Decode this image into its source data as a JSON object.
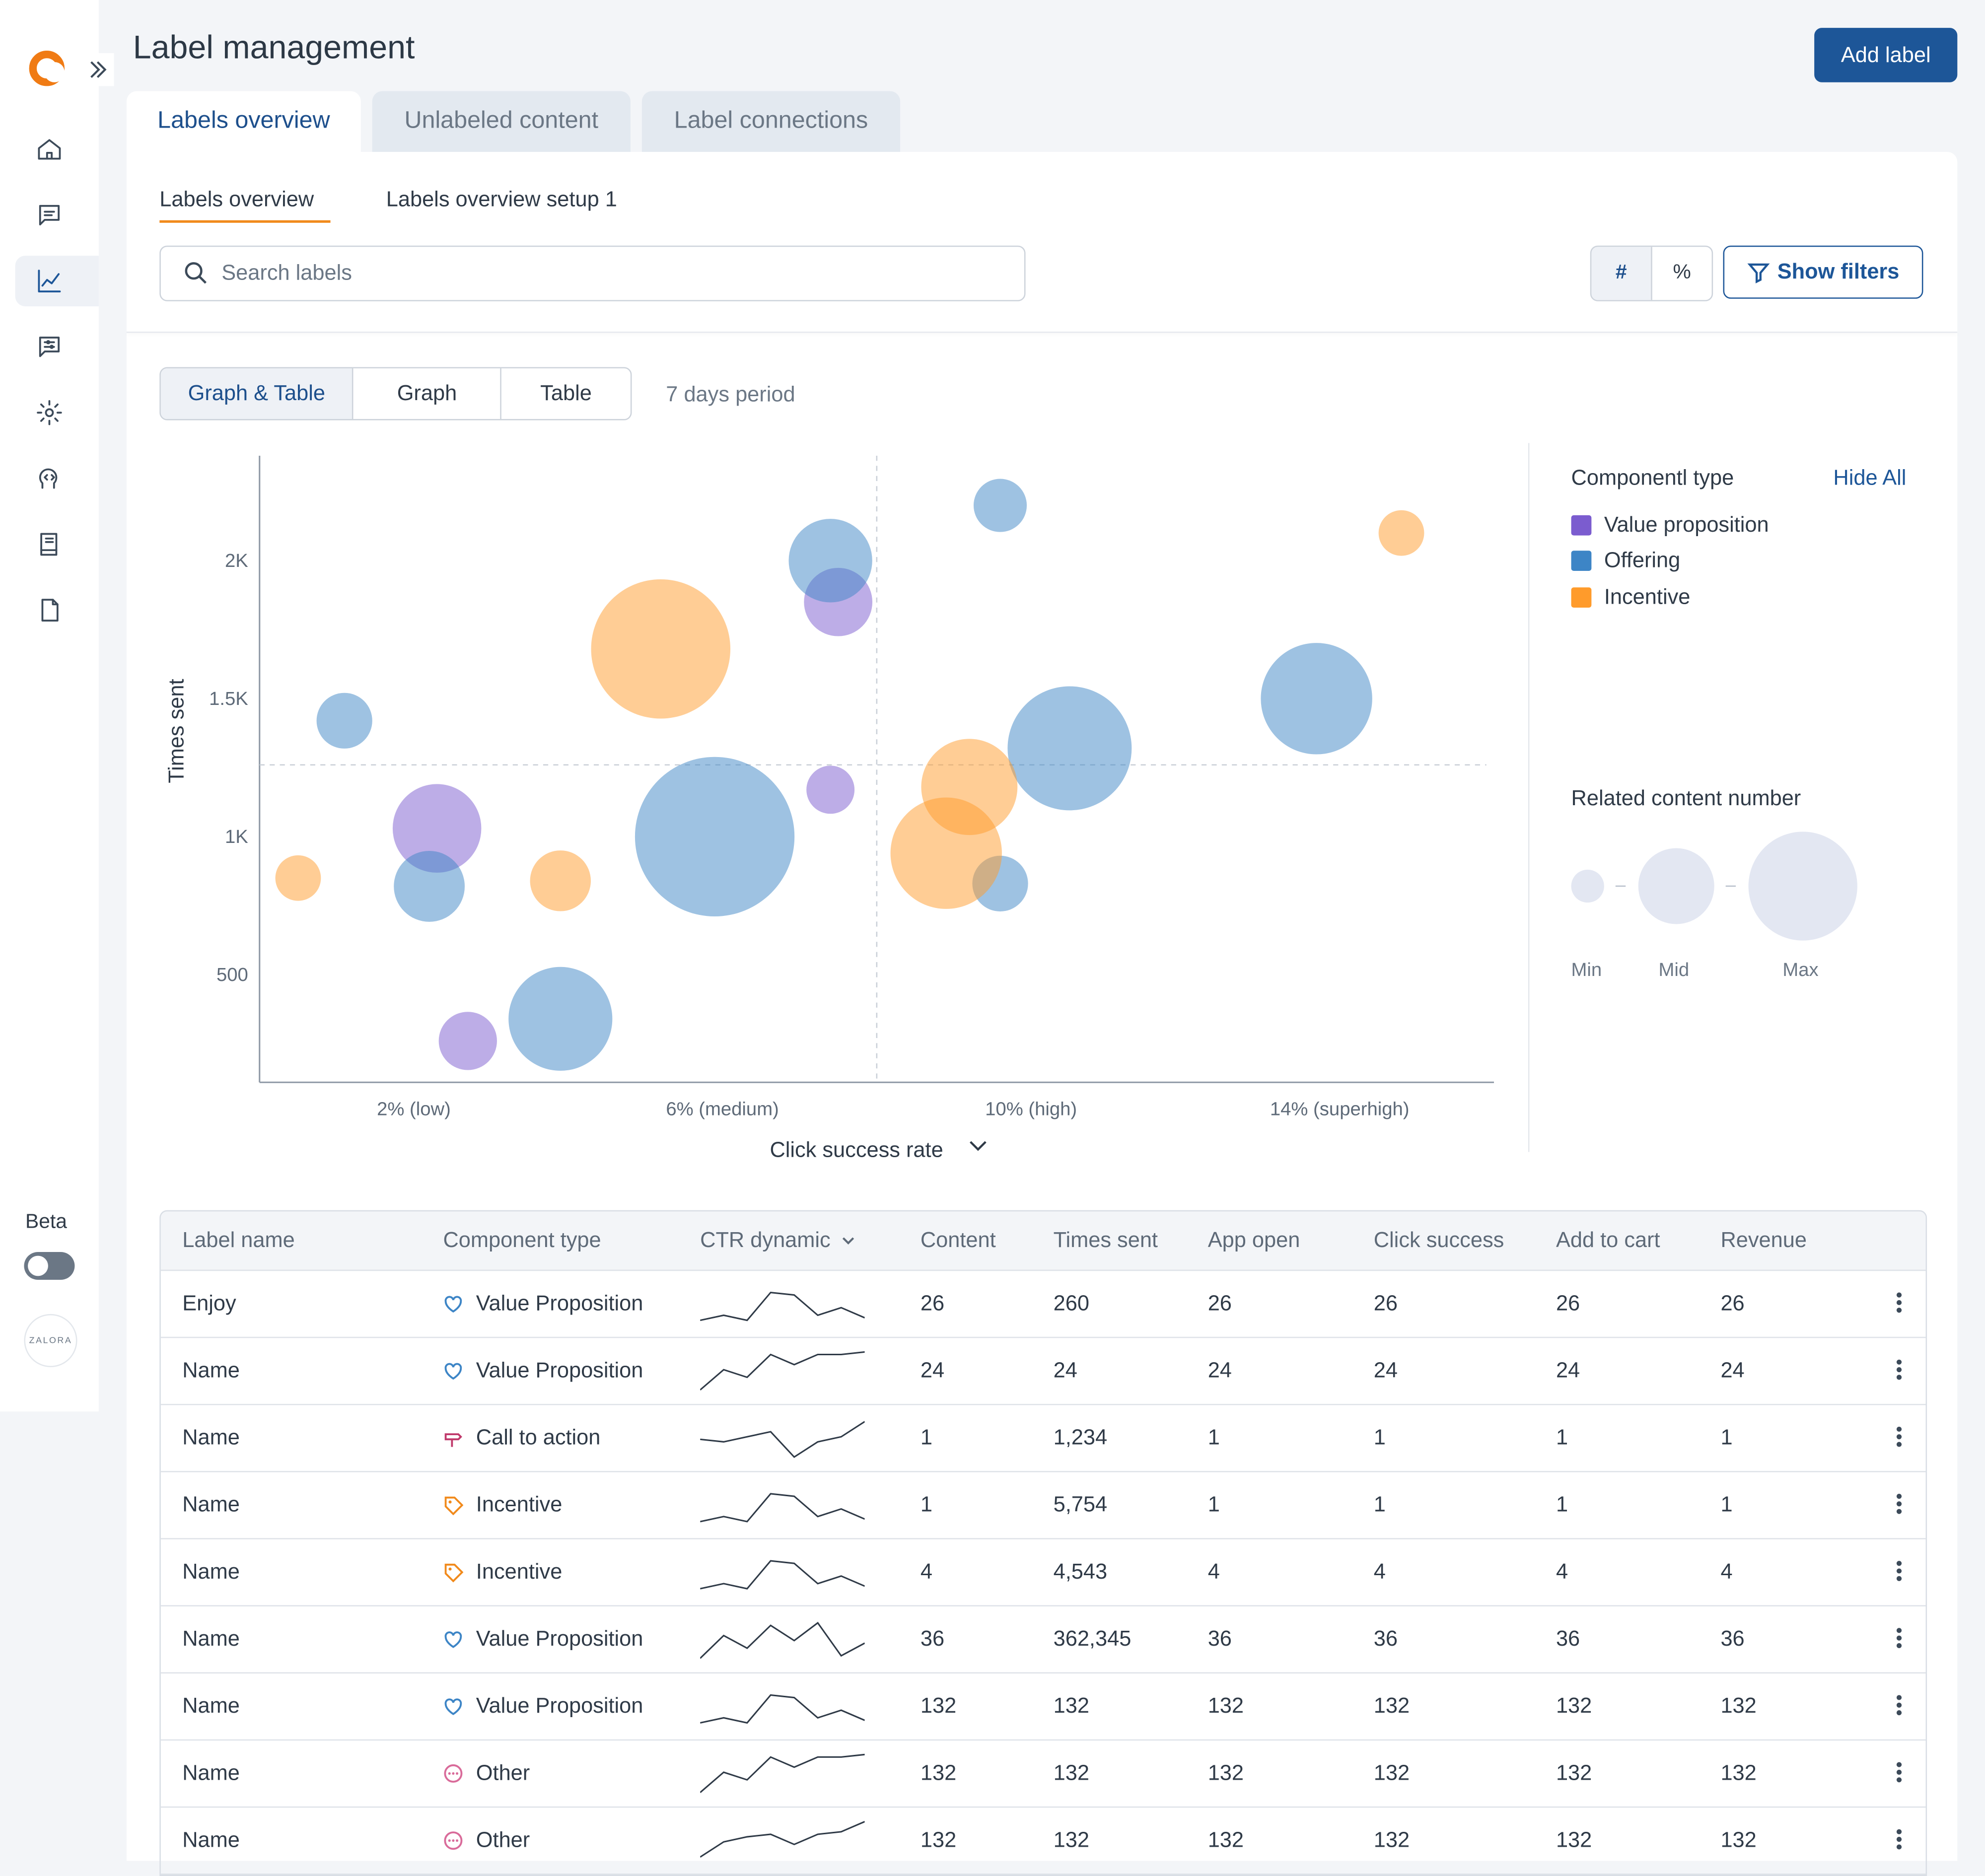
{
  "header": {
    "title": "Label management",
    "add_button": "Add label"
  },
  "tabs": [
    {
      "label": "Labels overview",
      "active": true
    },
    {
      "label": "Unlabeled content",
      "active": false
    },
    {
      "label": "Label connections",
      "active": false
    }
  ],
  "subtabs": [
    {
      "label": "Labels overview",
      "active": true
    },
    {
      "label": "Labels overview setup 1",
      "active": false
    }
  ],
  "search": {
    "placeholder": "Search labels",
    "value": ""
  },
  "unit_toggle": {
    "options": [
      "#",
      "%"
    ],
    "selected": "#"
  },
  "show_filters_label": "Show filters",
  "view_modes": {
    "options": [
      "Graph & Table",
      "Graph",
      "Table"
    ],
    "selected": "Graph & Table"
  },
  "period_label": "7 days period",
  "sidebar": {
    "icons": [
      "home-icon",
      "chat-icon",
      "chart-icon",
      "message-settings-icon",
      "gear-icon",
      "ai-head-icon",
      "book-icon",
      "document-icon"
    ],
    "active": "chart-icon",
    "beta_label": "Beta",
    "org_avatar": "ZALORA"
  },
  "legend": {
    "title": "Componentl type",
    "hide_all": "Hide All",
    "items": [
      {
        "name": "Value proposition",
        "color": "#7b5ccf"
      },
      {
        "name": "Offering",
        "color": "#3d85c6"
      },
      {
        "name": "Incentive",
        "color": "#ff9b2b"
      }
    ],
    "size_title": "Related content number",
    "size_labels": [
      "Min",
      "Mid",
      "Max"
    ]
  },
  "chart_data": {
    "type": "scatter",
    "subtype": "bubble",
    "xlabel": "Click success rate",
    "ylabel": "Times sent",
    "x_ticks": [
      {
        "value": 2,
        "label": "2% (low)"
      },
      {
        "value": 6,
        "label": "6% (medium)"
      },
      {
        "value": 10,
        "label": "10% (high)"
      },
      {
        "value": 14,
        "label": "14% (superhigh)"
      }
    ],
    "y_ticks": [
      {
        "value": 500,
        "label": "500"
      },
      {
        "value": 1000,
        "label": "1K"
      },
      {
        "value": 1500,
        "label": "1.5K"
      },
      {
        "value": 2000,
        "label": "2K"
      }
    ],
    "xlim": [
      0,
      16
    ],
    "ylim": [
      110,
      2380
    ],
    "reference_lines": {
      "x": 8,
      "y": 1260
    },
    "grid": false,
    "legend_position": "right",
    "series": [
      {
        "name": "Value proposition",
        "color": "#7b5ccf",
        "points": [
          {
            "x": 2.3,
            "y": 1030,
            "r": 35
          },
          {
            "x": 2.7,
            "y": 260,
            "r": 23
          },
          {
            "x": 7.5,
            "y": 1850,
            "r": 27
          },
          {
            "x": 7.4,
            "y": 1170,
            "r": 19
          }
        ]
      },
      {
        "name": "Offering",
        "color": "#3d85c6",
        "points": [
          {
            "x": 1.1,
            "y": 1420,
            "r": 22
          },
          {
            "x": 2.2,
            "y": 820,
            "r": 28
          },
          {
            "x": 3.9,
            "y": 340,
            "r": 41
          },
          {
            "x": 5.9,
            "y": 1000,
            "r": 63
          },
          {
            "x": 7.4,
            "y": 2000,
            "r": 33
          },
          {
            "x": 9.6,
            "y": 2200,
            "r": 21
          },
          {
            "x": 10.5,
            "y": 1320,
            "r": 49
          },
          {
            "x": 9.6,
            "y": 830,
            "r": 22
          },
          {
            "x": 13.7,
            "y": 1500,
            "r": 44
          }
        ]
      },
      {
        "name": "Incentive",
        "color": "#ff9b2b",
        "points": [
          {
            "x": 0.5,
            "y": 850,
            "r": 18
          },
          {
            "x": 3.9,
            "y": 840,
            "r": 24
          },
          {
            "x": 5.2,
            "y": 1680,
            "r": 55
          },
          {
            "x": 9.2,
            "y": 1180,
            "r": 38
          },
          {
            "x": 8.9,
            "y": 940,
            "r": 44
          },
          {
            "x": 14.8,
            "y": 2100,
            "r": 18
          }
        ]
      }
    ]
  },
  "table": {
    "columns": [
      "Label name",
      "Component type",
      "CTR dynamic",
      "Content",
      "Times sent",
      "App open",
      "Click success",
      "Add to cart",
      "Revenue"
    ],
    "rows": [
      {
        "name": "Enjoy",
        "type": "Value Proposition",
        "icon": "heart-icon",
        "spark": [
          2,
          6,
          2,
          24,
          22,
          6,
          12,
          4
        ],
        "content": "26",
        "times_sent": "260",
        "app_open": "26",
        "click_success": "26",
        "add_to_cart": "26",
        "revenue": "26"
      },
      {
        "name": "Name",
        "type": "Value Proposition",
        "icon": "heart-icon",
        "spark": [
          0,
          16,
          10,
          28,
          20,
          28,
          28,
          30
        ],
        "content": "24",
        "times_sent": "24",
        "app_open": "24",
        "click_success": "24",
        "add_to_cart": "24",
        "revenue": "24"
      },
      {
        "name": "Name",
        "type": "Call to action",
        "icon": "signpost-icon",
        "spark": [
          14,
          12,
          16,
          20,
          0,
          12,
          16,
          28
        ],
        "content": "1",
        "times_sent": "1,234",
        "app_open": "1",
        "click_success": "1",
        "add_to_cart": "1",
        "revenue": "1"
      },
      {
        "name": "Name",
        "type": "Incentive",
        "icon": "tag-icon",
        "spark": [
          2,
          6,
          2,
          24,
          22,
          6,
          12,
          4
        ],
        "content": "1",
        "times_sent": "5,754",
        "app_open": "1",
        "click_success": "1",
        "add_to_cart": "1",
        "revenue": "1"
      },
      {
        "name": "Name",
        "type": "Incentive",
        "icon": "tag-icon",
        "spark": [
          2,
          6,
          2,
          24,
          22,
          6,
          12,
          4
        ],
        "content": "4",
        "times_sent": "4,543",
        "app_open": "4",
        "click_success": "4",
        "add_to_cart": "4",
        "revenue": "4"
      },
      {
        "name": "Name",
        "type": "Value Proposition",
        "icon": "heart-icon",
        "spark": [
          0,
          18,
          8,
          26,
          14,
          28,
          2,
          12
        ],
        "content": "36",
        "times_sent": "362,345",
        "app_open": "36",
        "click_success": "36",
        "add_to_cart": "36",
        "revenue": "36"
      },
      {
        "name": "Name",
        "type": "Value Proposition",
        "icon": "heart-icon",
        "spark": [
          2,
          6,
          2,
          24,
          22,
          6,
          12,
          4
        ],
        "content": "132",
        "times_sent": "132",
        "app_open": "132",
        "click_success": "132",
        "add_to_cart": "132",
        "revenue": "132"
      },
      {
        "name": "Name",
        "type": "Other",
        "icon": "dots-circle-icon",
        "spark": [
          0,
          16,
          10,
          28,
          20,
          28,
          28,
          30
        ],
        "content": "132",
        "times_sent": "132",
        "app_open": "132",
        "click_success": "132",
        "add_to_cart": "132",
        "revenue": "132"
      },
      {
        "name": "Name",
        "type": "Other",
        "icon": "dots-circle-icon",
        "spark": [
          2,
          14,
          18,
          20,
          12,
          20,
          22,
          30
        ],
        "content": "132",
        "times_sent": "132",
        "app_open": "132",
        "click_success": "132",
        "add_to_cart": "132",
        "revenue": "132"
      }
    ]
  }
}
